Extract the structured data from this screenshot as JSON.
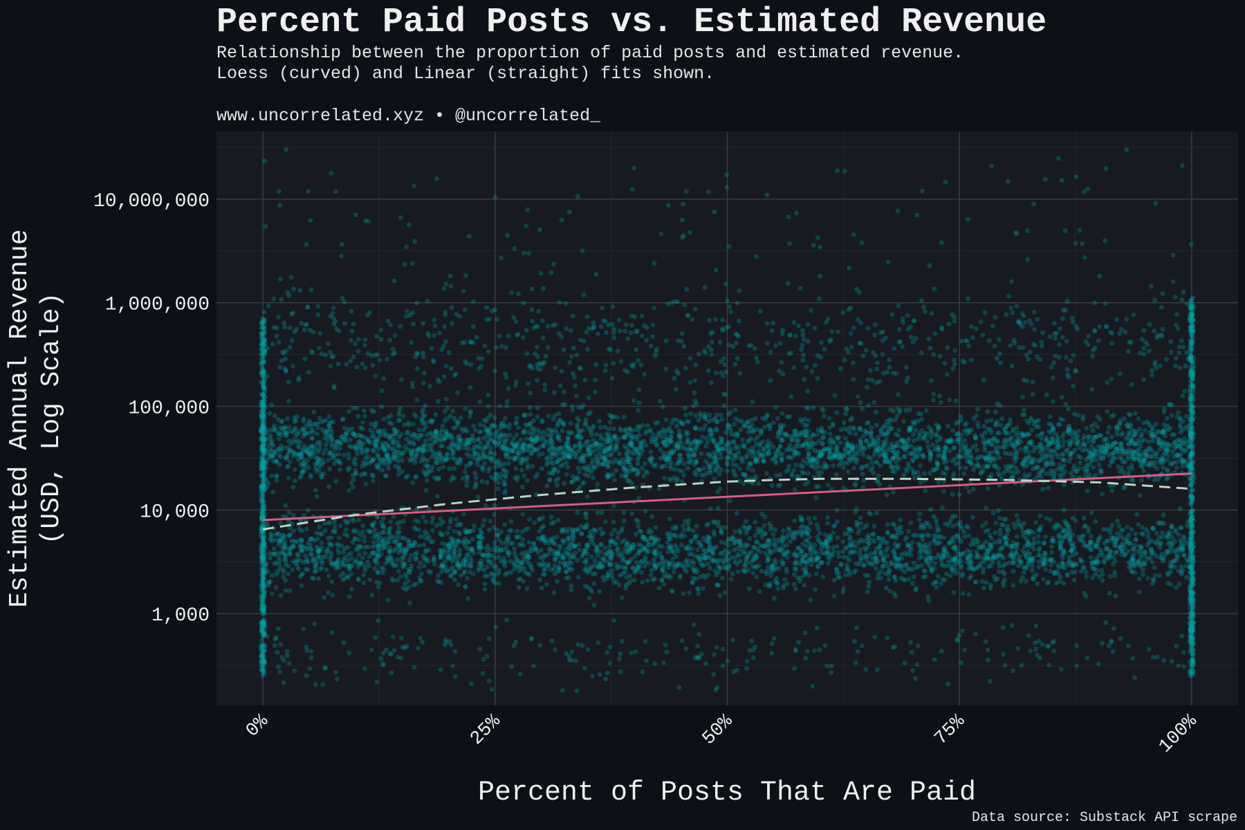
{
  "colors": {
    "background": "#0d1017",
    "panel": "#171a21",
    "grid_major": "#3a3d44",
    "grid_minor": "#24272e",
    "text": "#f0f0f0",
    "subtext": "#e6e6e6",
    "points": "#00a3a3",
    "linear_fit": "#d85c86",
    "loess_fit": "#b9d7c4"
  },
  "header": {
    "title": "Percent Paid Posts vs. Estimated Revenue",
    "subtitle_line1": "Relationship between the proportion of paid posts and estimated revenue.",
    "subtitle_line2": "Loess (curved) and Linear (straight) fits shown.",
    "credit": "www.uncorrelated.xyz • @uncorrelated_"
  },
  "caption": "Data source: Substack API scrape",
  "chart_data": {
    "type": "scatter",
    "title": "Percent Paid Posts vs. Estimated Revenue",
    "xlabel": "Percent of Posts That Are Paid",
    "ylabel_lines": [
      "Estimated Annual Revenue",
      "(USD, Log Scale)"
    ],
    "x_scale": "linear",
    "y_scale": "log10",
    "xlim": [
      -0.05,
      1.05
    ],
    "ylim": [
      130,
      45000000
    ],
    "x_ticks": [
      0,
      0.25,
      0.5,
      0.75,
      1.0
    ],
    "x_tick_labels": [
      "0%",
      "25%",
      "50%",
      "75%",
      "100%"
    ],
    "y_ticks": [
      1000,
      10000,
      100000,
      1000000,
      10000000
    ],
    "y_tick_labels": [
      "1,000",
      "10,000",
      "100,000",
      "1,000,000",
      "10,000,000"
    ],
    "grid": true,
    "point_clusters": [
      {
        "x_range": [
          0,
          1
        ],
        "y_center": 40000,
        "log_spread": 0.18,
        "count": 3200
      },
      {
        "x_range": [
          0,
          1
        ],
        "y_center": 4000,
        "log_spread": 0.18,
        "count": 2800
      },
      {
        "x_range": [
          0,
          1
        ],
        "y_center": 400000,
        "log_spread": 0.25,
        "count": 700
      },
      {
        "x_range": [
          0,
          1
        ],
        "y_center": 400,
        "log_spread": 0.15,
        "count": 250
      },
      {
        "x_range": [
          0,
          1
        ],
        "y_center": 3000000,
        "log_spread": 0.5,
        "count": 150
      }
    ],
    "edge_clusters": [
      {
        "x": 0,
        "y_range": [
          250,
          700000
        ],
        "count": 500
      },
      {
        "x": 1,
        "y_range": [
          250,
          1200000
        ],
        "count": 500
      }
    ],
    "outliers": [
      {
        "x": 0.025,
        "y": 30000000
      },
      {
        "x": 0.93,
        "y": 30000000
      },
      {
        "x": 0.99,
        "y": 21000000
      },
      {
        "x": 0.71,
        "y": 12000000
      },
      {
        "x": 0.83,
        "y": 9000000
      },
      {
        "x": 0.33,
        "y": 7500000
      }
    ],
    "series": [
      {
        "name": "Linear",
        "style": "solid",
        "x": [
          0,
          1
        ],
        "y": [
          8000,
          22500
        ]
      },
      {
        "name": "Loess",
        "style": "dashed",
        "x": [
          0,
          0.1,
          0.2,
          0.3,
          0.4,
          0.5,
          0.55,
          0.6,
          0.7,
          0.8,
          0.9,
          1.0
        ],
        "y": [
          6500,
          9000,
          11500,
          14000,
          16500,
          18800,
          19500,
          20000,
          20000,
          19500,
          18500,
          16000
        ]
      }
    ]
  }
}
